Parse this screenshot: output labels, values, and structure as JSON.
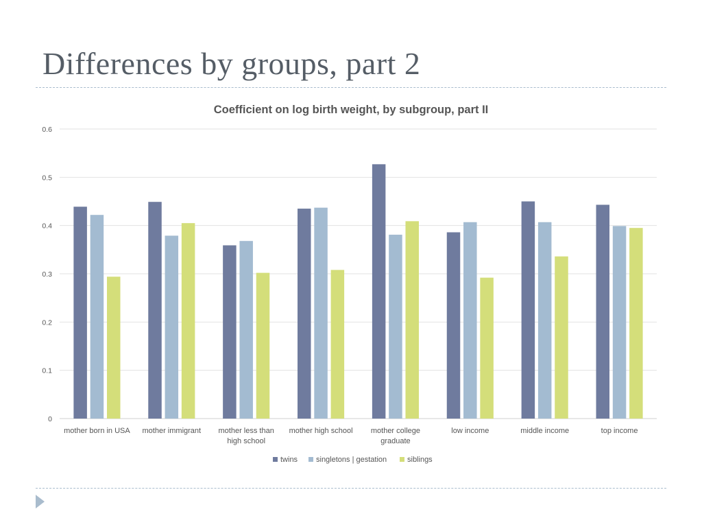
{
  "slide": {
    "title": "Differences by groups, part 2"
  },
  "colors": {
    "twins": "#6f7b9e",
    "singletons": "#a3bbd1",
    "siblings": "#d4de7a",
    "grid": "#e2e2e2",
    "rule": "#a9bccd"
  },
  "chart_data": {
    "type": "bar",
    "title": "Coefficient on log birth weight, by subgroup, part II",
    "xlabel": "",
    "ylabel": "",
    "ylim": [
      0,
      0.6
    ],
    "yticks": [
      "0",
      "0.1",
      "0.2",
      "0.3",
      "0.4",
      "0.5",
      "0.6"
    ],
    "grid": true,
    "legend_position": "bottom",
    "categories": [
      [
        "mother born in USA"
      ],
      [
        "mother immigrant"
      ],
      [
        "mother less than",
        "high school"
      ],
      [
        "mother high school"
      ],
      [
        "mother college",
        "graduate"
      ],
      [
        "low income"
      ],
      [
        "middle income"
      ],
      [
        "top income"
      ]
    ],
    "series": [
      {
        "name": "twins",
        "color": "#6f7b9e",
        "values": [
          0.439,
          0.449,
          0.359,
          0.435,
          0.527,
          0.386,
          0.45,
          0.443
        ]
      },
      {
        "name": "singletons | gestation",
        "color": "#a3bbd1",
        "values": [
          0.422,
          0.379,
          0.368,
          0.437,
          0.381,
          0.407,
          0.407,
          0.399
        ]
      },
      {
        "name": "siblings",
        "color": "#d4de7a",
        "values": [
          0.294,
          0.405,
          0.302,
          0.308,
          0.409,
          0.292,
          0.336,
          0.395
        ]
      }
    ]
  }
}
